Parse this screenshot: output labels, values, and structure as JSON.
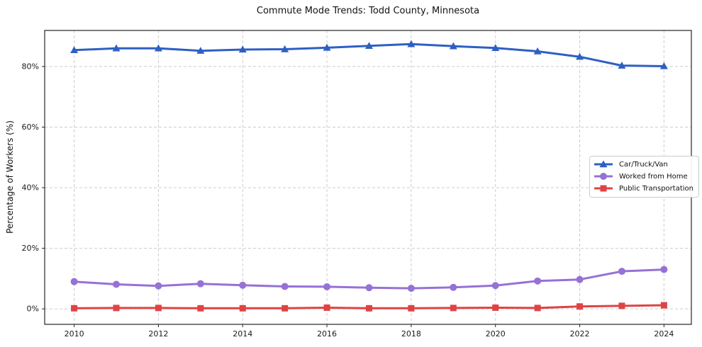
{
  "chart_data": {
    "type": "line",
    "title": "Commute Mode Trends: Todd County, Minnesota",
    "xlabel": "",
    "ylabel": "Percentage of Workers (%)",
    "x": [
      2010,
      2011,
      2012,
      2013,
      2014,
      2015,
      2016,
      2017,
      2018,
      2019,
      2020,
      2021,
      2022,
      2023,
      2024
    ],
    "x_ticks": [
      2010,
      2012,
      2014,
      2016,
      2018,
      2020,
      2022,
      2024
    ],
    "x_tick_labels": [
      "2010",
      "2012",
      "2014",
      "2016",
      "2018",
      "2020",
      "2022",
      "2024"
    ],
    "y_ticks": [
      0,
      20,
      40,
      60,
      80
    ],
    "y_tick_labels": [
      "0%",
      "20%",
      "40%",
      "60%",
      "80%"
    ],
    "xlim": [
      2009.3,
      2024.65
    ],
    "ylim": [
      -5.1,
      91.9
    ],
    "grid": true,
    "grid_style": "dashed",
    "grid_color": "#cccccc",
    "axis_color": "#262626",
    "legend_position": "center-right",
    "series": [
      {
        "name": "Car/Truck/Van",
        "color": "#2e5fc4",
        "marker": "triangle",
        "values": [
          85.4,
          86.0,
          86.0,
          85.2,
          85.6,
          85.7,
          86.2,
          86.8,
          87.4,
          86.7,
          86.1,
          85.0,
          83.2,
          80.3,
          80.1
        ]
      },
      {
        "name": "Worked from Home",
        "color": "#9671d6",
        "marker": "circle",
        "values": [
          9.0,
          8.1,
          7.6,
          8.3,
          7.8,
          7.4,
          7.3,
          7.0,
          6.8,
          7.1,
          7.7,
          9.2,
          9.7,
          12.4,
          13.0
        ]
      },
      {
        "name": "Public Transportation",
        "color": "#e04343",
        "marker": "square",
        "values": [
          0.2,
          0.3,
          0.3,
          0.2,
          0.2,
          0.2,
          0.4,
          0.2,
          0.2,
          0.3,
          0.4,
          0.3,
          0.8,
          1.0,
          1.2
        ]
      }
    ]
  }
}
